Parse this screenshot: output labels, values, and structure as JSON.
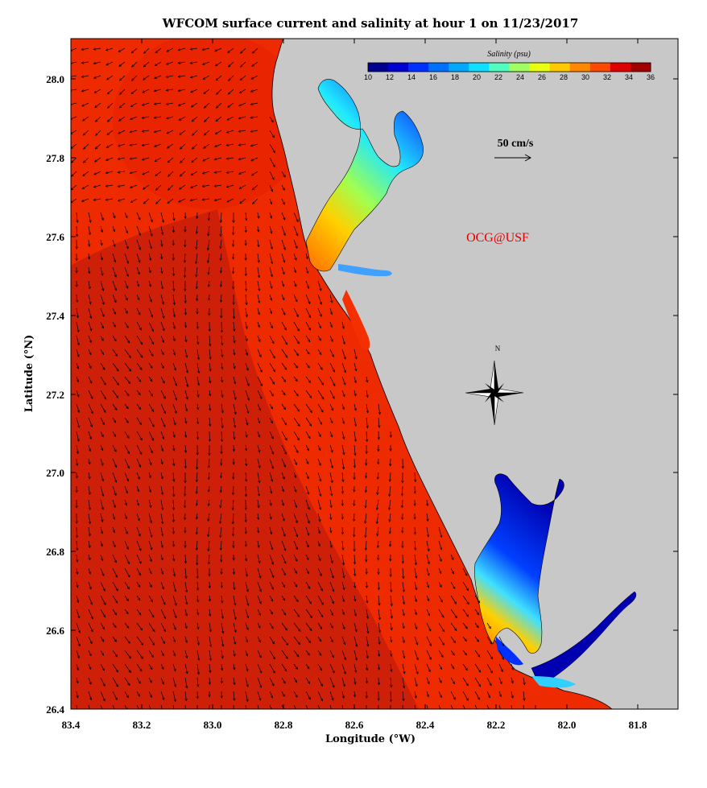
{
  "title": "WFCOM surface current and salinity at hour 1 on 11/23/2017",
  "x_axis": {
    "label": "Longitude (°W)",
    "ticks": [
      "83.4",
      "83.2",
      "83.0",
      "82.8",
      "82.6",
      "82.4",
      "82.2",
      "82.0",
      "81.8"
    ]
  },
  "y_axis": {
    "label": "Latitude (°N)",
    "ticks": [
      "28.0",
      "27.8",
      "27.6",
      "27.4",
      "27.2",
      "27.0",
      "26.8",
      "26.6",
      "26.4"
    ]
  },
  "colorbar": {
    "title": "Salinity (psu)",
    "ticks": [
      "10",
      "12",
      "14",
      "16",
      "18",
      "20",
      "22",
      "24",
      "26",
      "28",
      "30",
      "32",
      "34",
      "36"
    ],
    "colors": [
      "#00008f",
      "#0000d0",
      "#0030ff",
      "#0070ff",
      "#00a8ff",
      "#10e0ff",
      "#50ffc0",
      "#a0ff60",
      "#e8ff10",
      "#ffc800",
      "#ff8800",
      "#ff4800",
      "#e00000",
      "#a00000"
    ]
  },
  "scale_vector": {
    "label": "50 cm/s"
  },
  "compass": {
    "label": "N"
  },
  "watermark": "OCG@USF",
  "colors": {
    "land": "#c8c8c8",
    "offshore_dark": "#c81e0a",
    "offshore_bright": "#ee2a00",
    "nearshore": "#f53000",
    "arrow": "#000000"
  }
}
